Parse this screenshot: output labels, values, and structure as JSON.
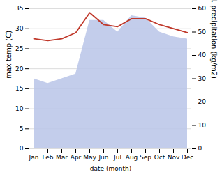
{
  "chart_data": {
    "type": "line",
    "categories": [
      "Jan",
      "Feb",
      "Mar",
      "Apr",
      "May",
      "Jun",
      "Jul",
      "Aug",
      "Sep",
      "Oct",
      "Nov",
      "Dec"
    ],
    "xlabel": "date (month)",
    "ylabel": "max temp (C)",
    "y2label": "med. precipitation (kg/m2)",
    "series": [
      {
        "type": "area",
        "axis": "y2",
        "color": "#b8c4e8",
        "values": [
          30,
          28,
          30,
          32,
          55,
          55,
          50,
          57,
          56,
          50,
          48,
          47
        ]
      },
      {
        "type": "line",
        "axis": "y",
        "color": "#c0392b",
        "values": [
          27.5,
          27,
          27.5,
          29,
          34,
          31,
          30.5,
          32.5,
          32.5,
          31,
          30,
          29
        ]
      }
    ],
    "ylim": [
      0,
      35
    ],
    "yticks": [
      0,
      5,
      10,
      15,
      20,
      25,
      30,
      35
    ],
    "y2lim": [
      0,
      60
    ],
    "y2ticks": [
      0,
      10,
      20,
      30,
      40,
      50,
      60
    ],
    "grid": true
  }
}
